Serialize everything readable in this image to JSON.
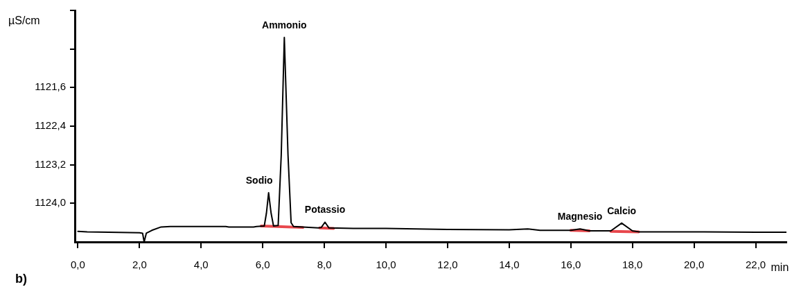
{
  "chart_data": {
    "type": "line",
    "xlabel": "min",
    "ylabel": "µS/cm",
    "xlim": [
      -0.1,
      23.0
    ],
    "xticks": [
      {
        "value": 0,
        "label": "0,0"
      },
      {
        "value": 2,
        "label": "2,0"
      },
      {
        "value": 4,
        "label": "4,0"
      },
      {
        "value": 6,
        "label": "6,0"
      },
      {
        "value": 8,
        "label": "8,0"
      },
      {
        "value": 10,
        "label": "10,0"
      },
      {
        "value": 12,
        "label": "12,0"
      },
      {
        "value": 14,
        "label": "14,0"
      },
      {
        "value": 16,
        "label": "16,0"
      },
      {
        "value": 18,
        "label": "18,0"
      },
      {
        "value": 20,
        "label": "20,0"
      },
      {
        "value": 22,
        "label": "22,0"
      }
    ],
    "ylim": [
      1124.8,
      1120.0
    ],
    "yticks": [
      {
        "value": 1120.0,
        "label": null
      },
      {
        "value": 1120.8,
        "label": null
      },
      {
        "value": 1121.6,
        "label": "1121,6"
      },
      {
        "value": 1122.4,
        "label": "1122,4"
      },
      {
        "value": 1123.2,
        "label": "1123,2"
      },
      {
        "value": 1124.0,
        "label": "1124,0"
      }
    ],
    "marker": "none",
    "series": [
      {
        "color": "#000000",
        "x": [
          0.0,
          0.3,
          1.0,
          2.0,
          2.1,
          2.15,
          2.22,
          2.4,
          2.7,
          3.0,
          4.8,
          4.9,
          5.7,
          5.8,
          6.05,
          6.12,
          6.19,
          6.27,
          6.35,
          6.5,
          6.6,
          6.7,
          6.82,
          6.92,
          7.0,
          7.8,
          7.9,
          8.02,
          8.15,
          9.0,
          10.0,
          12.0,
          14.0,
          14.6,
          15.0,
          16.0,
          16.3,
          16.6,
          17.3,
          17.65,
          18.0,
          18.2,
          20.0,
          22.0,
          23.0
        ],
        "values": [
          1124.58,
          1124.59,
          1124.6,
          1124.61,
          1124.62,
          1124.8,
          1124.62,
          1124.56,
          1124.49,
          1124.48,
          1124.48,
          1124.49,
          1124.49,
          1124.48,
          1124.47,
          1124.2,
          1123.78,
          1124.2,
          1124.47,
          1124.46,
          1123.0,
          1120.56,
          1123.0,
          1124.4,
          1124.48,
          1124.51,
          1124.5,
          1124.39,
          1124.51,
          1124.52,
          1124.52,
          1124.54,
          1124.55,
          1124.53,
          1124.56,
          1124.56,
          1124.53,
          1124.57,
          1124.57,
          1124.41,
          1124.57,
          1124.59,
          1124.59,
          1124.6,
          1124.6
        ]
      },
      {
        "color": "#e8474c",
        "x": [
          5.95,
          6.45,
          7.3
        ],
        "values": [
          1124.47,
          1124.48,
          1124.5
        ]
      },
      {
        "color": "#e8474c",
        "x": [
          7.85,
          8.3
        ],
        "values": [
          1124.51,
          1124.52
        ]
      },
      {
        "color": "#e8474c",
        "x": [
          16.0,
          16.6
        ],
        "values": [
          1124.56,
          1124.57
        ]
      },
      {
        "color": "#e8474c",
        "x": [
          17.3,
          18.2
        ],
        "values": [
          1124.58,
          1124.59
        ]
      }
    ],
    "annotations": [
      {
        "text": "Sodio",
        "x": 6.19,
        "y": 1123.78
      },
      {
        "text": "Ammonio",
        "x": 6.7,
        "y": 1120.56
      },
      {
        "text": "Potassio",
        "x": 8.02,
        "y": 1124.39
      },
      {
        "text": "Magnesio",
        "x": 16.3,
        "y": 1124.53
      },
      {
        "text": "Calcio",
        "x": 17.65,
        "y": 1124.41
      },
      "b)"
    ]
  }
}
